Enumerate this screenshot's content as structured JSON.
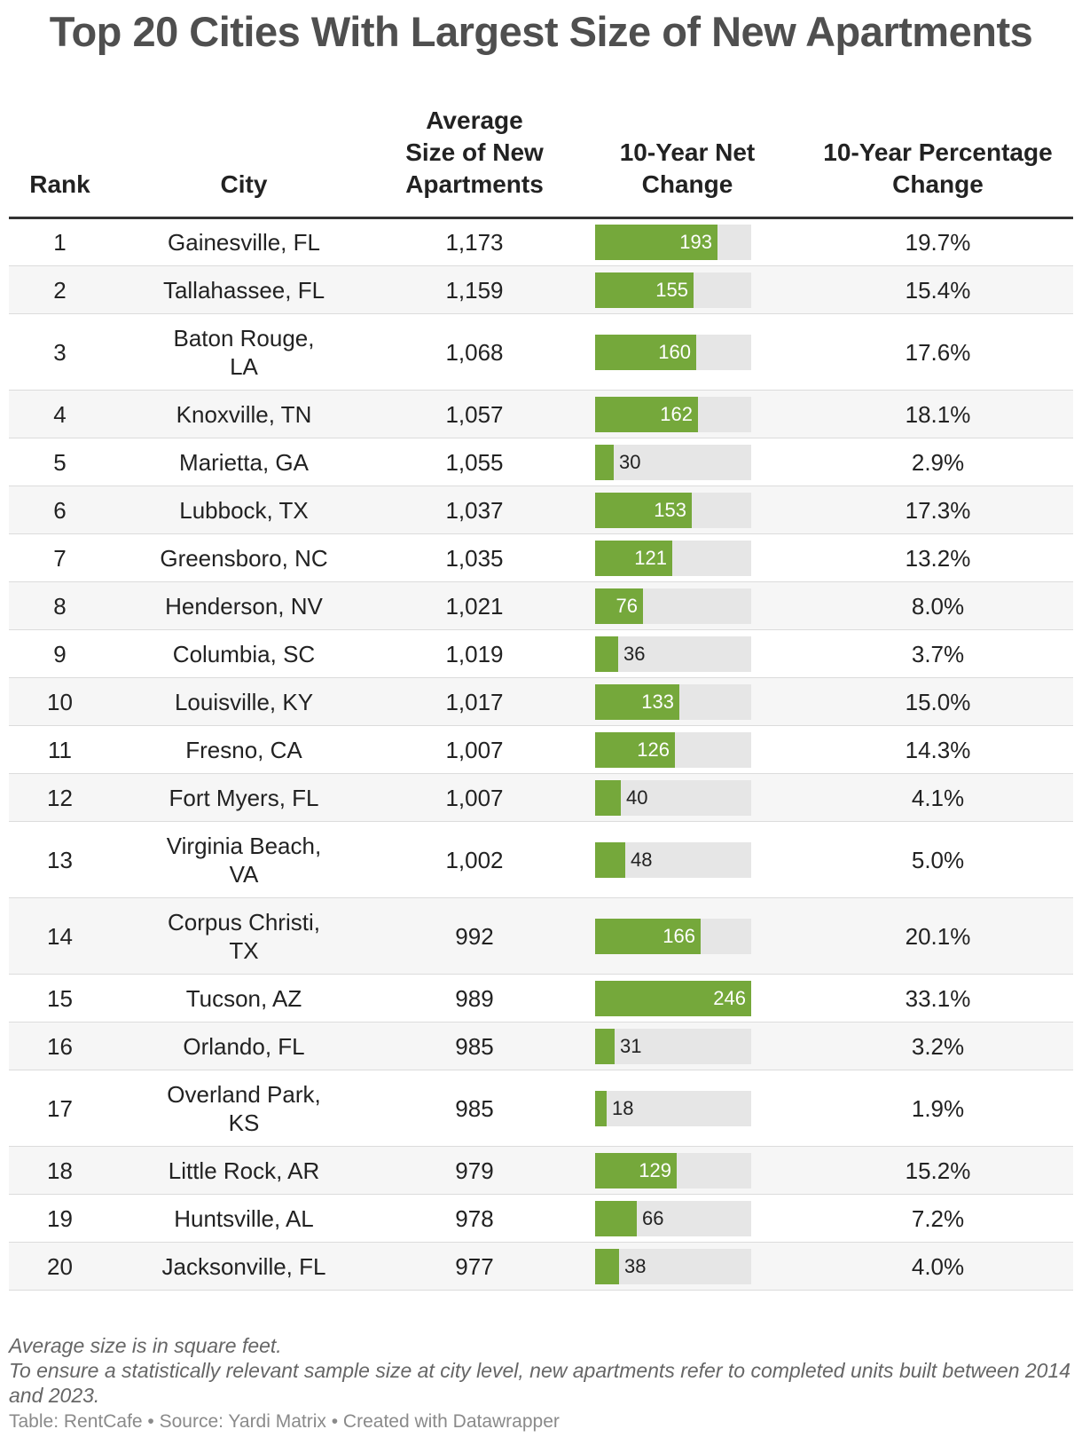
{
  "title": "Top 20 Cities With Largest Size of New Apartments",
  "headers": {
    "rank": "Rank",
    "city": "City",
    "avg_size_lines": [
      "Average",
      "Size of New",
      "Apartments"
    ],
    "net_change_lines": [
      "10-Year Net",
      "Change"
    ],
    "pct_change_lines": [
      "10-Year Percentage",
      "Change"
    ]
  },
  "colors": {
    "bar": "#75a83b",
    "bar_track": "#e6e6e6",
    "title": "#4f4f4f"
  },
  "chart_data": {
    "type": "table",
    "title": "Top 20 Cities With Largest Size of New Apartments",
    "columns": [
      "Rank",
      "City",
      "Average Size of New Apartments",
      "10-Year Net Change",
      "10-Year Percentage Change"
    ],
    "bar_column": "net_change",
    "bar_max": 246,
    "rows": [
      {
        "rank": "1",
        "city": [
          "Gainesville, FL"
        ],
        "avg_size": "1,173",
        "net_change": 193,
        "pct_change": "19.7%"
      },
      {
        "rank": "2",
        "city": [
          "Tallahassee, FL"
        ],
        "avg_size": "1,159",
        "net_change": 155,
        "pct_change": "15.4%"
      },
      {
        "rank": "3",
        "city": [
          "Baton Rouge,",
          "LA"
        ],
        "avg_size": "1,068",
        "net_change": 160,
        "pct_change": "17.6%"
      },
      {
        "rank": "4",
        "city": [
          "Knoxville, TN"
        ],
        "avg_size": "1,057",
        "net_change": 162,
        "pct_change": "18.1%"
      },
      {
        "rank": "5",
        "city": [
          "Marietta, GA"
        ],
        "avg_size": "1,055",
        "net_change": 30,
        "pct_change": "2.9%"
      },
      {
        "rank": "6",
        "city": [
          "Lubbock, TX"
        ],
        "avg_size": "1,037",
        "net_change": 153,
        "pct_change": "17.3%"
      },
      {
        "rank": "7",
        "city": [
          "Greensboro, NC"
        ],
        "avg_size": "1,035",
        "net_change": 121,
        "pct_change": "13.2%"
      },
      {
        "rank": "8",
        "city": [
          "Henderson, NV"
        ],
        "avg_size": "1,021",
        "net_change": 76,
        "pct_change": "8.0%"
      },
      {
        "rank": "9",
        "city": [
          "Columbia, SC"
        ],
        "avg_size": "1,019",
        "net_change": 36,
        "pct_change": "3.7%"
      },
      {
        "rank": "10",
        "city": [
          "Louisville, KY"
        ],
        "avg_size": "1,017",
        "net_change": 133,
        "pct_change": "15.0%"
      },
      {
        "rank": "11",
        "city": [
          "Fresno, CA"
        ],
        "avg_size": "1,007",
        "net_change": 126,
        "pct_change": "14.3%"
      },
      {
        "rank": "12",
        "city": [
          "Fort Myers, FL"
        ],
        "avg_size": "1,007",
        "net_change": 40,
        "pct_change": "4.1%"
      },
      {
        "rank": "13",
        "city": [
          "Virginia Beach,",
          "VA"
        ],
        "avg_size": "1,002",
        "net_change": 48,
        "pct_change": "5.0%"
      },
      {
        "rank": "14",
        "city": [
          "Corpus Christi,",
          "TX"
        ],
        "avg_size": "992",
        "net_change": 166,
        "pct_change": "20.1%"
      },
      {
        "rank": "15",
        "city": [
          "Tucson, AZ"
        ],
        "avg_size": "989",
        "net_change": 246,
        "pct_change": "33.1%"
      },
      {
        "rank": "16",
        "city": [
          "Orlando, FL"
        ],
        "avg_size": "985",
        "net_change": 31,
        "pct_change": "3.2%"
      },
      {
        "rank": "17",
        "city": [
          "Overland Park,",
          "KS"
        ],
        "avg_size": "985",
        "net_change": 18,
        "pct_change": "1.9%"
      },
      {
        "rank": "18",
        "city": [
          "Little Rock, AR"
        ],
        "avg_size": "979",
        "net_change": 129,
        "pct_change": "15.2%"
      },
      {
        "rank": "19",
        "city": [
          "Huntsville, AL"
        ],
        "avg_size": "978",
        "net_change": 66,
        "pct_change": "7.2%"
      },
      {
        "rank": "20",
        "city": [
          "Jacksonville, FL"
        ],
        "avg_size": "977",
        "net_change": 38,
        "pct_change": "4.0%"
      }
    ]
  },
  "notes": [
    "Average size is in square feet.",
    "To ensure a statistically relevant sample size at city level, new apartments refer to completed units built between 2014 and 2023."
  ],
  "credit": "Table: RentCafe • Source: Yardi Matrix • Created with Datawrapper"
}
